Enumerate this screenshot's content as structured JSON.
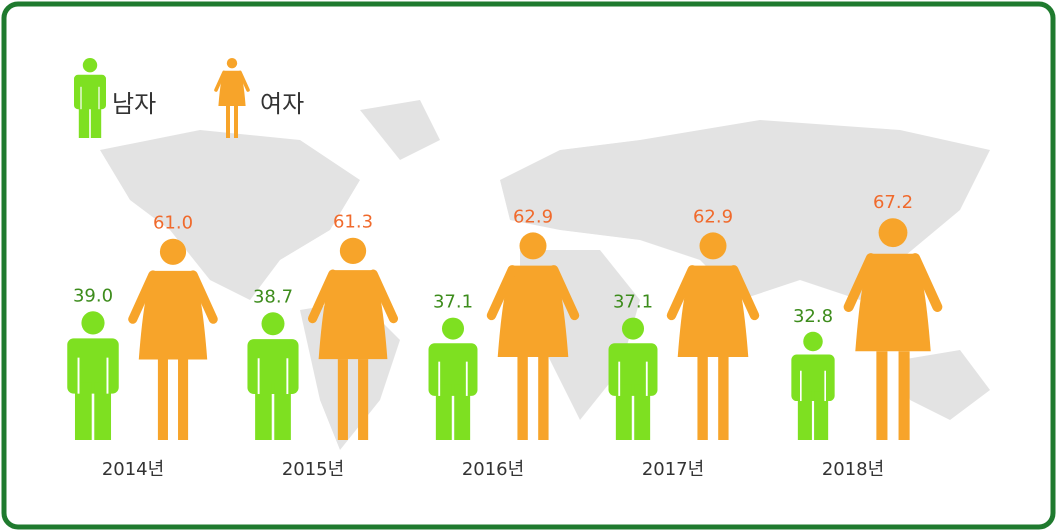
{
  "chart_data": {
    "type": "pictograph",
    "categories": [
      "2014년",
      "2015년",
      "2016년",
      "2017년",
      "2018년"
    ],
    "series": [
      {
        "name": "남자",
        "color": "#7ee021",
        "label_color": "#3d8c1c",
        "values": [
          39.0,
          38.7,
          37.1,
          37.1,
          32.8
        ],
        "value_labels": [
          "39.0",
          "38.7",
          "37.1",
          "37.1",
          "32.8"
        ]
      },
      {
        "name": "여자",
        "color": "#f7a42a",
        "label_color": "#f06a2c",
        "values": [
          61.0,
          61.3,
          62.9,
          62.9,
          67.2
        ],
        "value_labels": [
          "61.0",
          "61.3",
          "62.9",
          "62.9",
          "67.2"
        ]
      }
    ]
  }
}
